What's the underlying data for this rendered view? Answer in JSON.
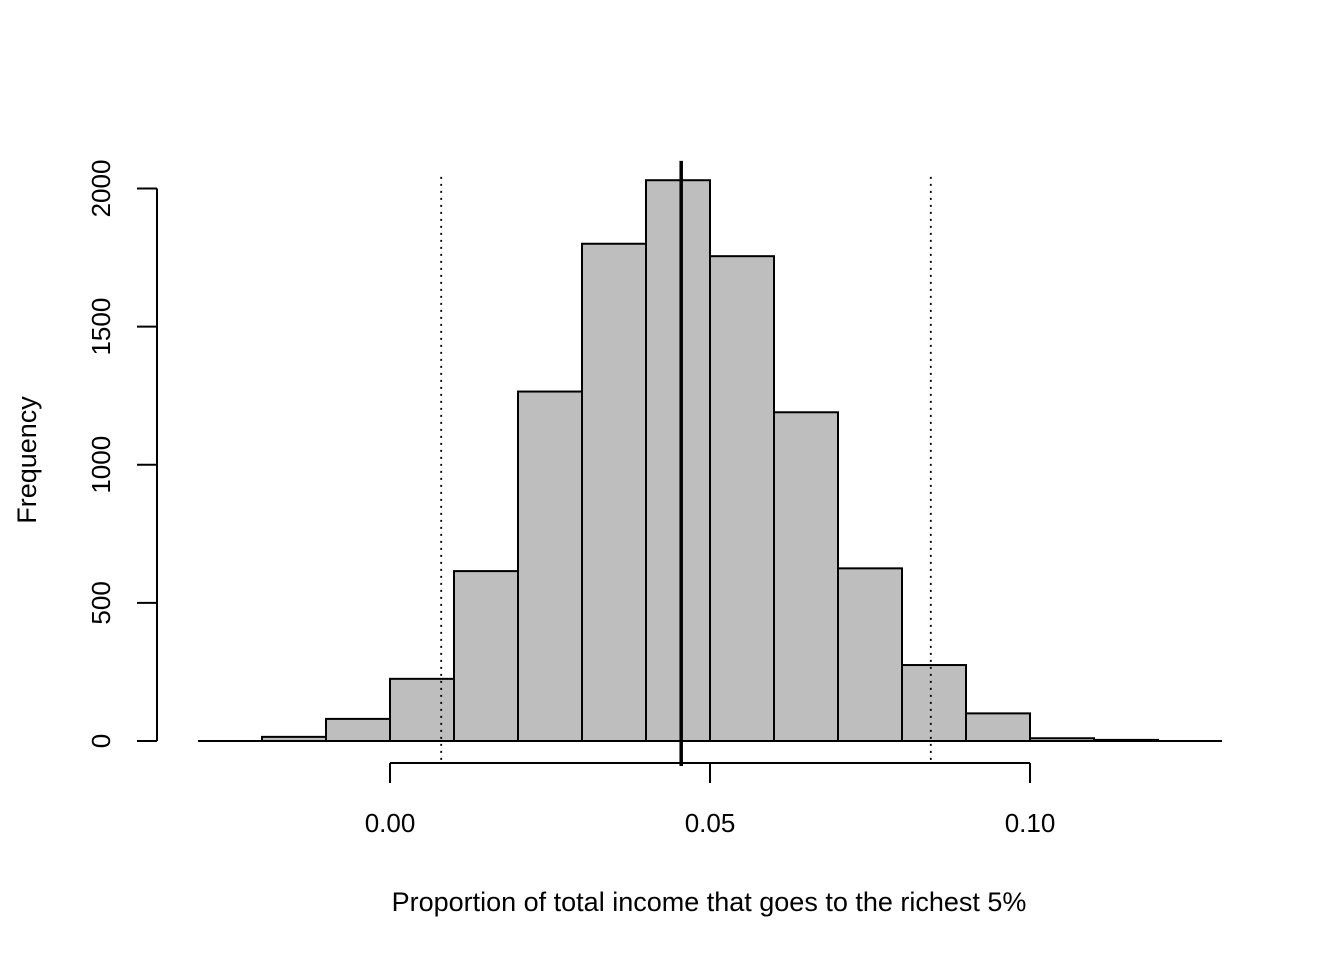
{
  "chart_data": {
    "type": "histogram",
    "title": "",
    "xlabel": "Proportion of total income that goes to the richest 5%",
    "ylabel": "Frequency",
    "xlim": [
      -0.03,
      0.13
    ],
    "ylim": [
      0,
      2100
    ],
    "x_ticks": [
      {
        "value": 0.0,
        "label": "0.00"
      },
      {
        "value": 0.05,
        "label": "0.05"
      },
      {
        "value": 0.1,
        "label": "0.10"
      }
    ],
    "x_axis_range": [
      0.0,
      0.1
    ],
    "y_ticks": [
      {
        "value": 0,
        "label": "0"
      },
      {
        "value": 500,
        "label": "500"
      },
      {
        "value": 1000,
        "label": "1000"
      },
      {
        "value": 1500,
        "label": "1500"
      },
      {
        "value": 2000,
        "label": "2000"
      }
    ],
    "bar_color": "#bebebe",
    "bins": [
      {
        "start": -0.02,
        "end": -0.01,
        "count": 15
      },
      {
        "start": -0.01,
        "end": 0.0,
        "count": 80
      },
      {
        "start": 0.0,
        "end": 0.01,
        "count": 225
      },
      {
        "start": 0.01,
        "end": 0.02,
        "count": 615
      },
      {
        "start": 0.02,
        "end": 0.03,
        "count": 1265
      },
      {
        "start": 0.03,
        "end": 0.04,
        "count": 1800
      },
      {
        "start": 0.04,
        "end": 0.05,
        "count": 2030
      },
      {
        "start": 0.05,
        "end": 0.06,
        "count": 1755
      },
      {
        "start": 0.06,
        "end": 0.07,
        "count": 1190
      },
      {
        "start": 0.07,
        "end": 0.08,
        "count": 625
      },
      {
        "start": 0.08,
        "end": 0.09,
        "count": 275
      },
      {
        "start": 0.09,
        "end": 0.1,
        "count": 100
      },
      {
        "start": 0.1,
        "end": 0.11,
        "count": 10
      },
      {
        "start": 0.11,
        "end": 0.12,
        "count": 4
      }
    ],
    "baseline_range": [
      -0.03,
      0.13
    ],
    "reference_lines": [
      {
        "value": 0.0455,
        "style": "solid"
      },
      {
        "value": 0.008,
        "style": "dotted"
      },
      {
        "value": 0.0845,
        "style": "dotted"
      }
    ]
  }
}
